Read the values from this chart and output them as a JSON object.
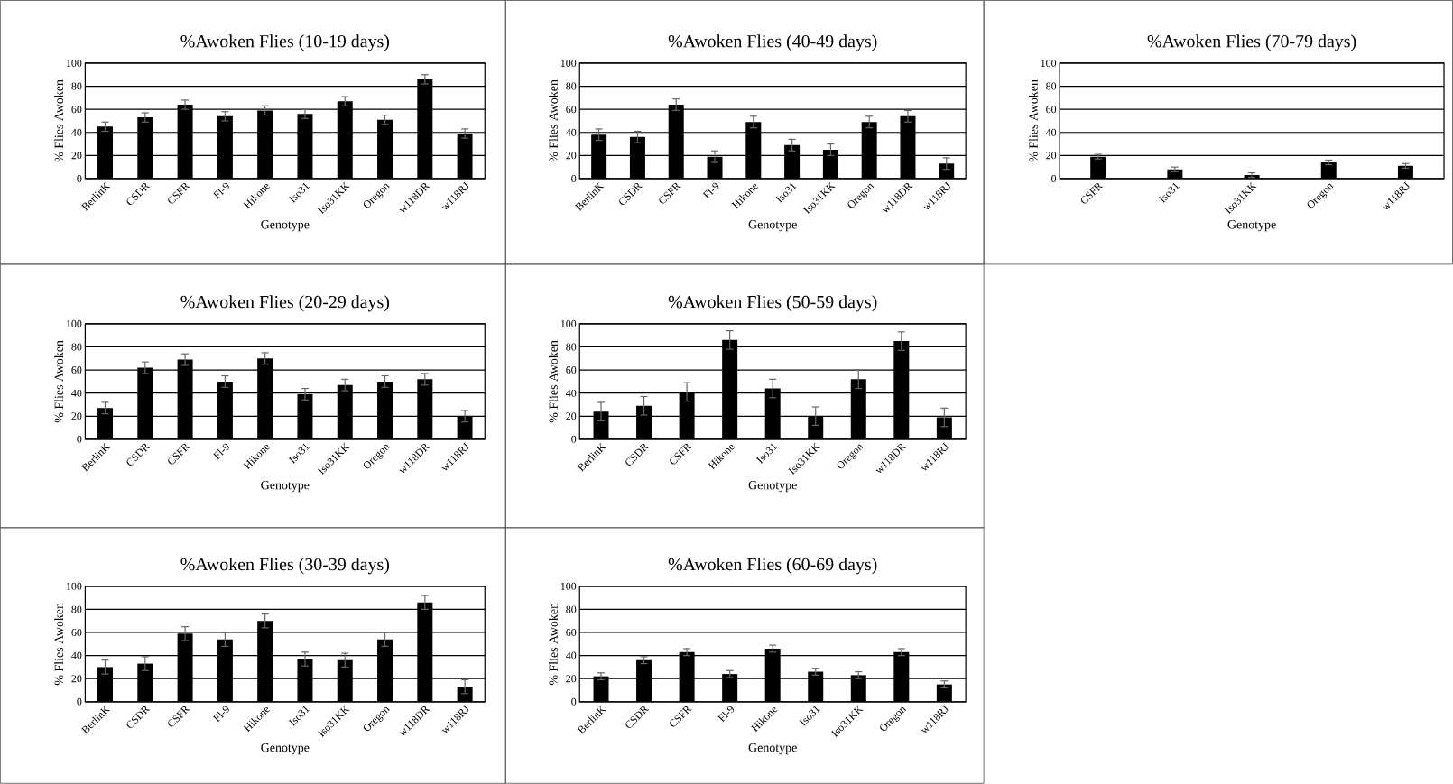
{
  "chart_data": [
    {
      "type": "bar",
      "title": "%Awoken Flies (10-19 days)",
      "xlabel": "Genotype",
      "ylabel": "% Flies Awoken",
      "categories": [
        "BerlinK",
        "CSDR",
        "CSFR",
        "Fl-9",
        "Hikone",
        "Iso31",
        "Iso31KK",
        "Oregon",
        "w118DR",
        "w118RJ"
      ],
      "values": [
        45,
        53,
        64,
        54,
        59,
        56,
        67,
        51,
        86,
        39
      ],
      "errors": [
        4,
        4,
        4,
        4,
        4,
        4,
        4,
        4,
        4,
        4
      ],
      "color": "#000000",
      "ylim": [
        0,
        100
      ],
      "yticks": [
        0,
        20,
        40,
        60,
        80,
        100
      ],
      "grid": "y"
    },
    {
      "type": "bar",
      "title": "%Awoken Flies (40-49 days)",
      "xlabel": "Genotype",
      "ylabel": "% Flies Awoken",
      "categories": [
        "BerlinK",
        "CSDR",
        "CSFR",
        "Fl-9",
        "Hikone",
        "Iso31",
        "Iso31KK",
        "Oregon",
        "w118DR",
        "w118RJ"
      ],
      "values": [
        38,
        36,
        64,
        19,
        49,
        29,
        25,
        49,
        54,
        13
      ],
      "errors": [
        5,
        5,
        5,
        5,
        5,
        5,
        5,
        5,
        5,
        5
      ],
      "color": "#000000",
      "ylim": [
        0,
        100
      ],
      "yticks": [
        0,
        20,
        40,
        60,
        80,
        100
      ],
      "grid": "y"
    },
    {
      "type": "bar",
      "title": "%Awoken Flies (70-79 days)",
      "xlabel": "Genotype",
      "ylabel": "% Flies Awoken",
      "categories": [
        "CSFR",
        "Iso31",
        "Iso31KK",
        "Oregon",
        "w118RJ"
      ],
      "values": [
        19,
        8,
        3,
        14,
        11
      ],
      "errors": [
        2,
        2,
        2,
        2,
        2
      ],
      "color": "#000000",
      "ylim": [
        0,
        100
      ],
      "yticks": [
        0,
        20,
        40,
        60,
        80,
        100
      ],
      "grid": "y"
    },
    {
      "type": "bar",
      "title": "%Awoken Flies (20-29 days)",
      "xlabel": "Genotype",
      "ylabel": "% Flies Awoken",
      "categories": [
        "BerlinK",
        "CSDR",
        "CSFR",
        "Fl-9",
        "Hikone",
        "Iso31",
        "Iso31KK",
        "Oregon",
        "w118DR",
        "w118RJ"
      ],
      "values": [
        27,
        62,
        69,
        50,
        70,
        39,
        47,
        50,
        52,
        20
      ],
      "errors": [
        5,
        5,
        5,
        5,
        5,
        5,
        5,
        5,
        5,
        5
      ],
      "color": "#000000",
      "ylim": [
        0,
        100
      ],
      "yticks": [
        0,
        20,
        40,
        60,
        80,
        100
      ],
      "grid": "y"
    },
    {
      "type": "bar",
      "title": "%Awoken Flies (50-59 days)",
      "xlabel": "Genotype",
      "ylabel": "% Flies Awoken",
      "categories": [
        "BerlinK",
        "CSDR",
        "CSFR",
        "Hikone",
        "Iso31",
        "Iso31KK",
        "Oregon",
        "w118DR",
        "w118RJ"
      ],
      "values": [
        24,
        29,
        41,
        86,
        44,
        20,
        52,
        85,
        19
      ],
      "errors": [
        8,
        8,
        8,
        8,
        8,
        8,
        8,
        8,
        8
      ],
      "color": "#000000",
      "ylim": [
        0,
        100
      ],
      "yticks": [
        0,
        20,
        40,
        60,
        80,
        100
      ],
      "grid": "y"
    },
    {
      "type": "bar",
      "title": "%Awoken Flies (30-39 days)",
      "xlabel": "Genotype",
      "ylabel": "% Flies Awoken",
      "categories": [
        "BerlinK",
        "CSDR",
        "CSFR",
        "Fl-9",
        "Hikone",
        "Iso31",
        "Iso31KK",
        "Oregon",
        "w118DR",
        "w118RJ"
      ],
      "values": [
        30,
        33,
        59,
        54,
        70,
        37,
        36,
        54,
        86,
        13
      ],
      "errors": [
        6,
        6,
        6,
        6,
        6,
        6,
        6,
        6,
        6,
        6
      ],
      "color": "#000000",
      "ylim": [
        0,
        100
      ],
      "yticks": [
        0,
        20,
        40,
        60,
        80,
        100
      ],
      "grid": "y"
    },
    {
      "type": "bar",
      "title": "%Awoken Flies (60-69 days)",
      "xlabel": "Genotype",
      "ylabel": "% Flies Awoken",
      "categories": [
        "BerlinK",
        "CSDR",
        "CSFR",
        "Fl-9",
        "Hikone",
        "Iso31",
        "Iso31KK",
        "Oregon",
        "w118RJ"
      ],
      "values": [
        22,
        36,
        43,
        24,
        46,
        26,
        23,
        43,
        15
      ],
      "errors": [
        3,
        3,
        3,
        3,
        3,
        3,
        3,
        3,
        3
      ],
      "color": "#000000",
      "ylim": [
        0,
        100
      ],
      "yticks": [
        0,
        20,
        40,
        60,
        80,
        100
      ],
      "grid": "y"
    }
  ]
}
